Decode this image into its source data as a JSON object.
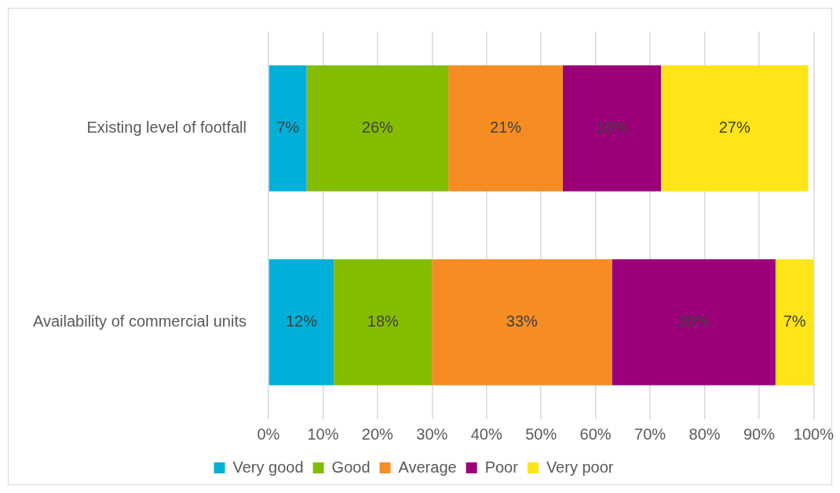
{
  "chart_data": {
    "type": "bar",
    "orientation": "horizontal",
    "stacked": true,
    "categories": [
      "Existing level of footfall",
      "Availability of commercial units"
    ],
    "series": [
      {
        "name": "Very good",
        "color": "#00b0d8",
        "values": [
          7,
          12
        ],
        "value_labels": [
          "7%",
          "12%"
        ]
      },
      {
        "name": "Good",
        "color": "#84bd00",
        "values": [
          26,
          18
        ],
        "value_labels": [
          "26%",
          "18%"
        ]
      },
      {
        "name": "Average",
        "color": "#f68d22",
        "values": [
          21,
          33
        ],
        "value_labels": [
          "21%",
          "33%"
        ]
      },
      {
        "name": "Poor",
        "color": "#9b0079",
        "values": [
          18,
          30
        ],
        "value_labels": [
          "18%",
          "30%"
        ]
      },
      {
        "name": "Very poor",
        "color": "#ffe417",
        "values": [
          27,
          7
        ],
        "value_labels": [
          "27%",
          "7%"
        ]
      }
    ],
    "xlim": [
      0,
      100
    ],
    "xticks": [
      {
        "value": 0,
        "label": "0%"
      },
      {
        "value": 10,
        "label": "10%"
      },
      {
        "value": 20,
        "label": "20%"
      },
      {
        "value": 30,
        "label": "30%"
      },
      {
        "value": 40,
        "label": "40%"
      },
      {
        "value": 50,
        "label": "50%"
      },
      {
        "value": 60,
        "label": "60%"
      },
      {
        "value": 70,
        "label": "70%"
      },
      {
        "value": 80,
        "label": "80%"
      },
      {
        "value": 90,
        "label": "90%"
      },
      {
        "value": 100,
        "label": "100%"
      }
    ],
    "grid": "x",
    "legend": "bottom"
  }
}
